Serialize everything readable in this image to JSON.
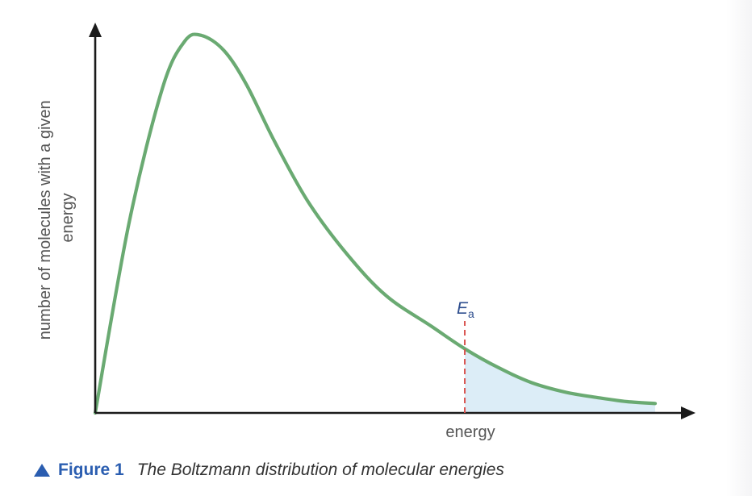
{
  "chart_data": {
    "type": "line",
    "title": "",
    "xlabel": "energy",
    "ylabel": "number of molecules with a given energy",
    "xlim": [
      0,
      1
    ],
    "ylim": [
      0,
      1
    ],
    "grid": false,
    "legend": "none",
    "series": [
      {
        "color": "#6aaa72",
        "x": [
          0.0,
          0.06,
          0.12,
          0.16,
          0.19,
          0.23,
          0.27,
          0.32,
          0.38,
          0.45,
          0.52,
          0.6,
          0.66,
          0.72,
          0.78,
          0.84,
          0.9,
          0.95,
          1.0
        ],
        "y": [
          0.0,
          0.5,
          0.86,
          0.985,
          1.0,
          0.96,
          0.87,
          0.72,
          0.56,
          0.42,
          0.31,
          0.23,
          0.17,
          0.12,
          0.08,
          0.055,
          0.04,
          0.03,
          0.025
        ]
      }
    ],
    "annotations": [
      {
        "label": "E",
        "subscript": "a",
        "x": 0.66,
        "shaded_region": "area under curve for energy above Ea",
        "shade_color": "#dcedf7",
        "line_color": "#d9534f"
      }
    ]
  },
  "caption": {
    "label": "Figure 1",
    "text": "The Boltzmann distribution of molecular energies",
    "accent_color": "#2a5db0"
  }
}
